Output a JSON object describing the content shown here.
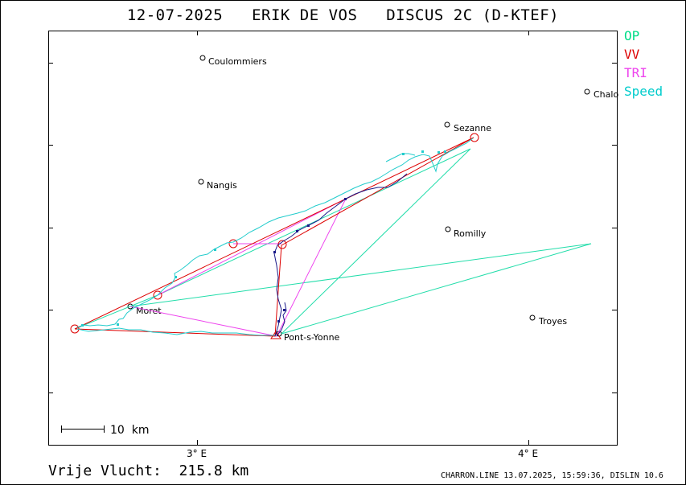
{
  "title": "12-07-2025   ERIK DE VOS   DISCUS 2C (D-KTEF)",
  "legend": [
    {
      "label": "OP",
      "color": "#00dd88"
    },
    {
      "label": "VV",
      "color": "#dd0000"
    },
    {
      "label": "TRI",
      "color": "#ee44ee"
    },
    {
      "label": "Speed",
      "color": "#00cccc"
    }
  ],
  "map": {
    "axis_labels": [
      "3° E",
      "4° E"
    ],
    "scale_label": "10  km",
    "towns": [
      "Coulommiers",
      "Chalo",
      "Sezanne",
      "Nangis",
      "Romilly",
      "Moret",
      "Troyes",
      "Pont-s-Yonne"
    ]
  },
  "footer": {
    "distance": "Vrije Vlucht:  215.8 km",
    "credit": "CHARRON.LINE 13.07.2025, 15:59:36, DISLIN 10.6"
  }
}
